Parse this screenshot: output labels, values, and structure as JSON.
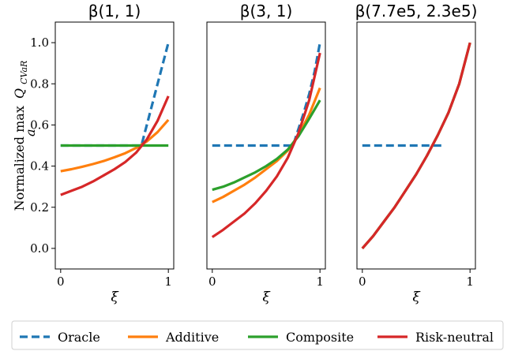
{
  "chart_data": {
    "type": "line",
    "ylabel_prefix": "Normalized max",
    "ylabel_sub": "a",
    "ylabel_q": "Q",
    "ylabel_q_sub": "CVaR",
    "ylim": [
      -0.1,
      1.1
    ],
    "yticks": [
      "0.0",
      "0.2",
      "0.4",
      "0.6",
      "0.8",
      "1.0"
    ],
    "ytick_values": [
      0.0,
      0.2,
      0.4,
      0.6,
      0.8,
      1.0
    ],
    "xlim": [
      -0.05,
      1.05
    ],
    "xticks": [
      "0",
      "1"
    ],
    "xtick_values": [
      0,
      1
    ],
    "legend_placement": "bottom",
    "grid": false,
    "colors": {
      "Oracle": "#1f77b4",
      "Additive": "#ff7f0e",
      "Composite": "#2ca02c",
      "Risk-neutral": "#d62728"
    },
    "legend": [
      {
        "name": "Oracle",
        "style": "dashed"
      },
      {
        "name": "Additive",
        "style": "solid"
      },
      {
        "name": "Composite",
        "style": "solid"
      },
      {
        "name": "Risk-neutral",
        "style": "solid"
      }
    ],
    "panels": [
      {
        "title": "β(1, 1)",
        "xlabel": "ξ",
        "show_yticks": true,
        "series": [
          {
            "name": "Oracle",
            "x": [
              0,
              0.75,
              1.0
            ],
            "y": [
              0.5,
              0.5,
              1.0
            ]
          },
          {
            "name": "Additive",
            "x": [
              0,
              0.1,
              0.2,
              0.3,
              0.4,
              0.5,
              0.6,
              0.7,
              0.8,
              0.9,
              1.0
            ],
            "y": [
              0.375,
              0.385,
              0.397,
              0.41,
              0.425,
              0.443,
              0.463,
              0.488,
              0.52,
              0.565,
              0.625
            ]
          },
          {
            "name": "Composite",
            "x": [
              0,
              1.0
            ],
            "y": [
              0.5,
              0.5
            ]
          },
          {
            "name": "Risk-neutral",
            "x": [
              0,
              0.1,
              0.2,
              0.3,
              0.4,
              0.5,
              0.6,
              0.7,
              0.8,
              0.9,
              1.0
            ],
            "y": [
              0.26,
              0.28,
              0.3,
              0.325,
              0.355,
              0.385,
              0.42,
              0.465,
              0.53,
              0.62,
              0.74
            ]
          }
        ]
      },
      {
        "title": "β(3, 1)",
        "xlabel": "ξ",
        "show_yticks": false,
        "series": [
          {
            "name": "Oracle",
            "x": [
              0,
              0.75,
              0.8,
              0.85,
              0.9,
              0.95,
              1.0
            ],
            "y": [
              0.5,
              0.5,
              0.58,
              0.66,
              0.75,
              0.86,
              1.0
            ]
          },
          {
            "name": "Additive",
            "x": [
              0,
              0.1,
              0.2,
              0.3,
              0.4,
              0.5,
              0.6,
              0.7,
              0.8,
              0.9,
              1.0
            ],
            "y": [
              0.225,
              0.25,
              0.28,
              0.31,
              0.345,
              0.385,
              0.425,
              0.475,
              0.55,
              0.65,
              0.78
            ]
          },
          {
            "name": "Composite",
            "x": [
              0,
              0.1,
              0.2,
              0.3,
              0.4,
              0.5,
              0.6,
              0.7,
              0.8,
              0.9,
              1.0
            ],
            "y": [
              0.285,
              0.3,
              0.32,
              0.345,
              0.37,
              0.4,
              0.435,
              0.48,
              0.545,
              0.63,
              0.72
            ]
          },
          {
            "name": "Risk-neutral",
            "x": [
              0,
              0.1,
              0.2,
              0.3,
              0.4,
              0.5,
              0.6,
              0.7,
              0.8,
              0.9,
              1.0
            ],
            "y": [
              0.055,
              0.09,
              0.13,
              0.17,
              0.22,
              0.28,
              0.35,
              0.44,
              0.56,
              0.72,
              0.95
            ]
          }
        ]
      },
      {
        "title": "β(7.7e5, 2.3e5)",
        "xlabel": "ξ",
        "show_yticks": false,
        "series": [
          {
            "name": "Oracle",
            "x": [
              0,
              0.75
            ],
            "y": [
              0.5,
              0.5
            ]
          },
          {
            "name": "Additive",
            "x": [
              0,
              0.1,
              0.2,
              0.3,
              0.4,
              0.5,
              0.6,
              0.7,
              0.8,
              0.9,
              1.0
            ],
            "y": [
              0.0,
              0.06,
              0.13,
              0.2,
              0.28,
              0.36,
              0.45,
              0.55,
              0.66,
              0.8,
              1.0
            ]
          },
          {
            "name": "Composite",
            "x": [
              0,
              0.1,
              0.2,
              0.3,
              0.4,
              0.5,
              0.6,
              0.7,
              0.8,
              0.9,
              1.0
            ],
            "y": [
              0.0,
              0.06,
              0.13,
              0.2,
              0.28,
              0.36,
              0.45,
              0.55,
              0.66,
              0.8,
              1.0
            ]
          },
          {
            "name": "Risk-neutral",
            "x": [
              0,
              0.1,
              0.2,
              0.3,
              0.4,
              0.5,
              0.6,
              0.7,
              0.8,
              0.9,
              1.0
            ],
            "y": [
              0.0,
              0.06,
              0.13,
              0.2,
              0.28,
              0.36,
              0.45,
              0.55,
              0.66,
              0.8,
              1.0
            ]
          }
        ]
      }
    ]
  }
}
